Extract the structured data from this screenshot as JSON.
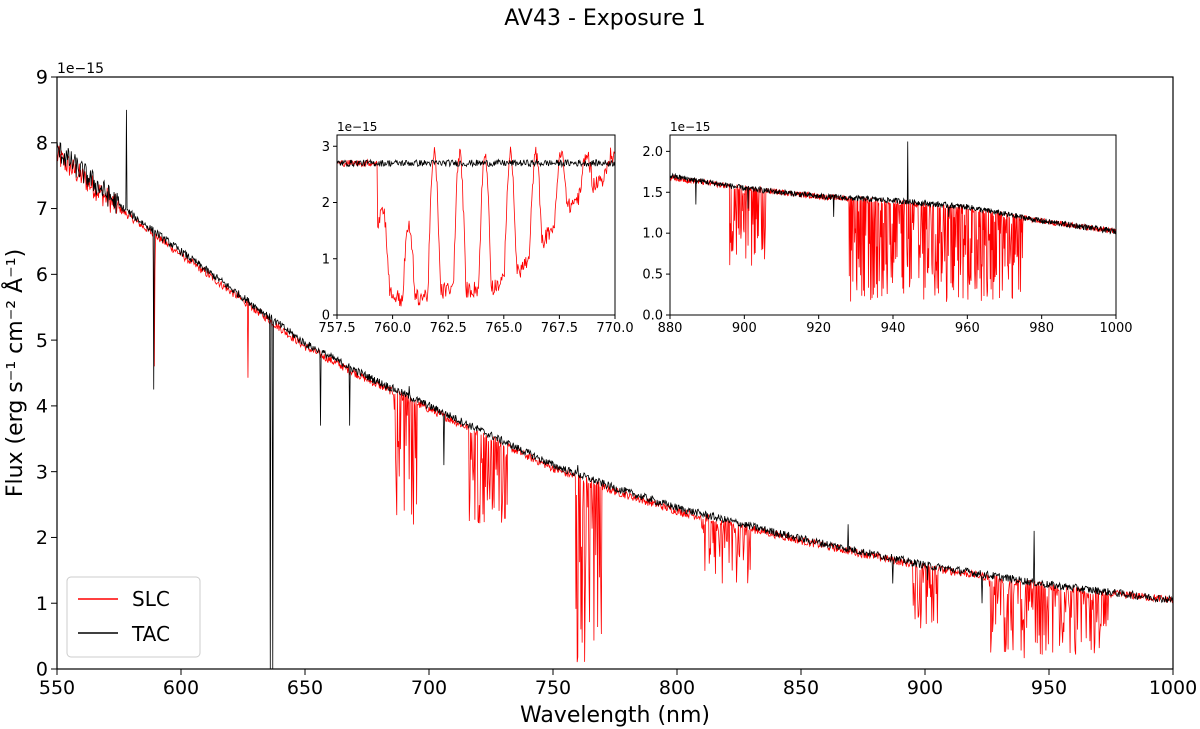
{
  "title": "AV43 - Exposure 1",
  "chart_data": [
    {
      "id": "main",
      "type": "line",
      "title": "",
      "xlabel": "Wavelength (nm)",
      "ylabel": "Flux (erg s⁻¹ cm⁻² Å⁻¹)",
      "xlim": [
        550,
        1000
      ],
      "ylim": [
        0,
        9
      ],
      "y_offset_text": "1e−15",
      "x_ticks": [
        550,
        600,
        650,
        700,
        750,
        800,
        850,
        900,
        950,
        1000
      ],
      "y_ticks": [
        0,
        1,
        2,
        3,
        4,
        5,
        6,
        7,
        8,
        9
      ],
      "legend": {
        "location": "lower-left",
        "entries": [
          "SLC",
          "TAC"
        ]
      },
      "series": [
        {
          "name": "SLC",
          "color": "#ff0000",
          "continuum": {
            "x": [
              550,
              575,
              600,
              625,
              650,
              675,
              700,
              725,
              750,
              775,
              800,
              850,
              900,
              950,
              1000
            ],
            "y": [
              7.8,
              7.0,
              6.3,
              5.6,
              4.9,
              4.4,
              3.95,
              3.5,
              3.05,
              2.7,
              2.4,
              1.95,
              1.55,
              1.25,
              1.05
            ]
          },
          "absorption_bands": [
            {
              "x": [
                589,
                589.6
              ],
              "min": 4.3
            },
            {
              "x": [
                627,
                629
              ],
              "min": 4.3
            },
            {
              "x": [
                686,
                695
              ],
              "min": 1.7
            },
            {
              "x": [
                716,
                732
              ],
              "min": 2.2
            },
            {
              "x": [
                759,
                770
              ],
              "min": 0.1
            },
            {
              "x": [
                810,
                830
              ],
              "min": 1.3
            },
            {
              "x": [
                895,
                905
              ],
              "min": 0.6
            },
            {
              "x": [
                926,
                975
              ],
              "min": 0.15
            }
          ]
        },
        {
          "name": "TAC",
          "color": "#000000",
          "continuum": {
            "x": [
              550,
              575,
              600,
              625,
              650,
              675,
              700,
              725,
              750,
              775,
              800,
              850,
              900,
              950,
              1000
            ],
            "y": [
              7.9,
              7.05,
              6.35,
              5.65,
              4.95,
              4.45,
              4.0,
              3.55,
              3.1,
              2.75,
              2.45,
              1.98,
              1.58,
              1.28,
              1.05
            ]
          },
          "features": [
            {
              "x": 589,
              "min": 4.25
            },
            {
              "x": 636,
              "min": 0.0
            },
            {
              "x": 637,
              "min": 0.0
            },
            {
              "x": 656.3,
              "min": 3.7
            },
            {
              "x": 668,
              "min": 3.7
            },
            {
              "x": 578,
              "max": 8.5
            },
            {
              "x": 692,
              "max": 4.3
            },
            {
              "x": 706,
              "min": 3.1
            },
            {
              "x": 760,
              "max": 3.1
            },
            {
              "x": 869,
              "max": 2.2
            },
            {
              "x": 887,
              "min": 1.3
            },
            {
              "x": 901,
              "min": 1.35
            },
            {
              "x": 923,
              "min": 1.0
            },
            {
              "x": 944,
              "max": 2.1
            }
          ]
        }
      ]
    },
    {
      "id": "inset1",
      "type": "line",
      "xlim": [
        757.5,
        770.0
      ],
      "ylim": [
        0,
        3.2
      ],
      "y_offset_text": "1e−15",
      "x_ticks": [
        "757.5",
        "760.0",
        "762.5",
        "765.0",
        "767.5",
        "770.0"
      ],
      "y_ticks": [
        0,
        1,
        2,
        3
      ],
      "series": [
        {
          "name": "SLC",
          "color": "#ff0000",
          "continuum": 2.7,
          "band_start": 759.3,
          "envelope": {
            "x": [
              759.3,
              759.8,
              760.5,
              761.5,
              762.5,
              763.5,
              764.5,
              765.5,
              766.5,
              767.5,
              768.5,
              770
            ],
            "min": [
              1.4,
              0.25,
              0.1,
              0.2,
              0.3,
              0.3,
              0.35,
              0.55,
              1.0,
              1.6,
              2.0,
              2.45
            ]
          }
        },
        {
          "name": "TAC",
          "color": "#000000",
          "continuum": 2.7
        }
      ]
    },
    {
      "id": "inset2",
      "type": "line",
      "xlim": [
        880,
        1000
      ],
      "ylim": [
        0,
        2.2
      ],
      "y_offset_text": "1e−15",
      "x_ticks": [
        880,
        900,
        920,
        940,
        960,
        980,
        1000
      ],
      "y_ticks": [
        "0.0",
        "0.5",
        "1.0",
        "1.5",
        "2.0"
      ],
      "series": [
        {
          "name": "SLC",
          "color": "#ff0000",
          "continuum": {
            "x": [
              880,
              900,
              920,
              940,
              960,
              980,
              1000
            ],
            "y": [
              1.68,
              1.55,
              1.45,
              1.38,
              1.3,
              1.15,
              1.02
            ]
          },
          "absorption_bands": [
            {
              "x": [
                896,
                906
              ],
              "min": 0.6
            },
            {
              "x": [
                928,
                975
              ],
              "min": 0.15
            }
          ]
        },
        {
          "name": "TAC",
          "color": "#000000",
          "continuum": {
            "x": [
              880,
              900,
              920,
              940,
              960,
              980,
              1000
            ],
            "y": [
              1.7,
              1.55,
              1.45,
              1.4,
              1.32,
              1.15,
              1.02
            ]
          },
          "features": [
            {
              "x": 887,
              "min": 1.35
            },
            {
              "x": 901,
              "min": 1.3
            },
            {
              "x": 924,
              "min": 1.2
            },
            {
              "x": 944,
              "max": 2.12
            },
            {
              "x": 955,
              "min": 1.2
            }
          ]
        }
      ]
    }
  ]
}
